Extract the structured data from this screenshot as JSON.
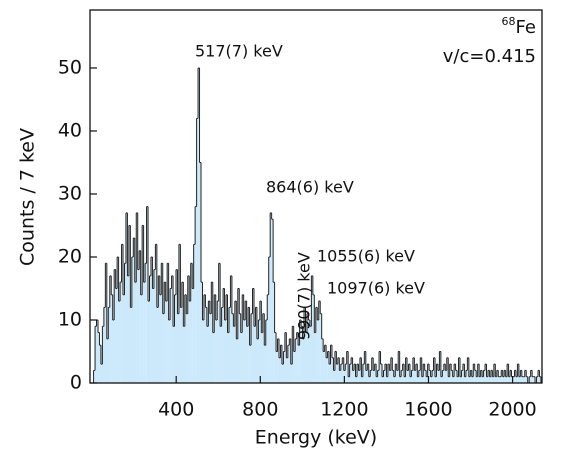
{
  "chart_data": {
    "type": "histogram",
    "x_label": "Energy (keV)",
    "y_label": "Counts / 7 keV",
    "isotope": {
      "mass": "68",
      "symbol": "Fe"
    },
    "velocity": "v/c=0.415",
    "annotations": [
      "517(7) keV",
      "864(6) keV",
      "990(7) keV",
      "1055(6) keV",
      "1097(6) keV"
    ],
    "color": "#cce9fb",
    "edge_color": "#222222",
    "xlim": [
      -10,
      2140
    ],
    "ylim": [
      0,
      59.2
    ],
    "xticks": [
      400,
      800,
      1200,
      1600,
      2000
    ],
    "yticks": [
      0,
      10,
      20,
      30,
      40,
      50
    ],
    "bins": [
      0,
      7,
      14,
      21,
      28,
      35,
      42,
      49,
      56,
      63,
      70,
      77,
      84,
      91,
      98,
      105,
      112,
      119,
      126,
      133,
      140,
      147,
      154,
      161,
      168,
      175,
      182,
      189,
      196,
      203,
      210,
      217,
      224,
      231,
      238,
      245,
      252,
      259,
      266,
      273,
      280,
      287,
      294,
      301,
      308,
      315,
      322,
      329,
      336,
      343,
      350,
      357,
      364,
      371,
      378,
      385,
      392,
      399,
      406,
      413,
      420,
      427,
      434,
      441,
      448,
      455,
      462,
      469,
      476,
      483,
      490,
      497,
      504,
      511,
      518,
      525,
      532,
      539,
      546,
      553,
      560,
      567,
      574,
      581,
      588,
      595,
      602,
      609,
      616,
      623,
      630,
      637,
      644,
      651,
      658,
      665,
      672,
      679,
      686,
      693,
      700,
      707,
      714,
      721,
      728,
      735,
      742,
      749,
      756,
      763,
      770,
      777,
      784,
      791,
      798,
      805,
      812,
      819,
      826,
      833,
      840,
      847,
      854,
      861,
      868,
      875,
      882,
      889,
      896,
      903,
      910,
      917,
      924,
      931,
      938,
      945,
      952,
      959,
      966,
      973,
      980,
      987,
      994,
      1001,
      1008,
      1015,
      1022,
      1029,
      1036,
      1043,
      1050,
      1057,
      1064,
      1071,
      1078,
      1085,
      1092,
      1099,
      1106,
      1113,
      1120,
      1127,
      1134,
      1141,
      1148,
      1155,
      1162,
      1169,
      1176,
      1183,
      1190,
      1197,
      1204,
      1211,
      1218,
      1225,
      1232,
      1239,
      1246,
      1253,
      1260,
      1267,
      1274,
      1281,
      1288,
      1295,
      1302,
      1309,
      1316,
      1323,
      1330,
      1337,
      1344,
      1351,
      1358,
      1365,
      1372,
      1379,
      1386,
      1393,
      1400,
      1407,
      1414,
      1421,
      1428,
      1435,
      1442,
      1449,
      1456,
      1463,
      1470,
      1477,
      1484,
      1491,
      1498,
      1505,
      1512,
      1519,
      1526,
      1533,
      1540,
      1547,
      1554,
      1561,
      1568,
      1575,
      1582,
      1589,
      1596,
      1603,
      1610,
      1617,
      1624,
      1631,
      1638,
      1645,
      1652,
      1659,
      1666,
      1673,
      1680,
      1687,
      1694,
      1701,
      1708,
      1715,
      1722,
      1729,
      1736,
      1743,
      1750,
      1757,
      1764,
      1771,
      1778,
      1785,
      1792,
      1799,
      1806,
      1813,
      1820,
      1827,
      1834,
      1841,
      1848,
      1855,
      1862,
      1869,
      1876,
      1883,
      1890,
      1897,
      1904,
      1911,
      1918,
      1925,
      1932,
      1939,
      1946,
      1953,
      1960,
      1967,
      1974,
      1981,
      1988,
      1995,
      2002,
      2009,
      2016,
      2023,
      2030,
      2037,
      2044,
      2051,
      2058,
      2065,
      2072,
      2079,
      2086,
      2093,
      2100,
      2107,
      2114,
      2121,
      2128,
      2135,
      2142
    ],
    "counts": [
      0,
      2,
      9,
      10,
      8,
      6,
      3,
      9,
      12,
      19,
      7,
      12,
      17,
      14,
      10,
      18,
      15,
      20,
      13,
      16,
      22,
      14,
      19,
      27,
      17,
      25,
      12,
      20,
      23,
      16,
      27,
      18,
      21,
      14,
      25,
      16,
      19,
      28,
      13,
      17,
      20,
      15,
      18,
      22,
      12,
      17,
      14,
      19,
      11,
      16,
      13,
      19,
      10,
      15,
      17,
      9,
      14,
      18,
      11,
      22,
      12,
      16,
      9,
      14,
      11,
      17,
      13,
      19,
      15,
      22,
      28,
      42,
      50,
      35,
      16,
      10,
      14,
      12,
      9,
      13,
      11,
      16,
      8,
      14,
      10,
      13,
      19,
      9,
      12,
      15,
      10,
      14,
      8,
      12,
      17,
      11,
      9,
      13,
      7,
      15,
      11,
      8,
      14,
      10,
      13,
      9,
      12,
      6,
      11,
      15,
      9,
      12,
      7,
      10,
      13,
      8,
      11,
      6,
      10,
      14,
      20,
      27,
      26,
      16,
      8,
      5,
      7,
      4,
      6,
      3,
      5,
      8,
      4,
      6,
      7,
      3,
      9,
      5,
      7,
      8,
      6,
      10,
      9,
      7,
      12,
      8,
      11,
      10,
      9,
      17,
      14,
      8,
      12,
      10,
      13,
      11,
      7,
      5,
      6,
      4,
      5,
      3,
      6,
      4,
      2,
      5,
      3,
      4,
      2,
      3,
      4,
      2,
      3,
      5,
      1,
      3,
      4,
      2,
      3,
      1,
      3,
      2,
      4,
      1,
      3,
      5,
      2,
      3,
      1,
      2,
      4,
      2,
      3,
      1,
      2,
      5,
      3,
      1,
      2,
      3,
      1,
      3,
      2,
      4,
      2,
      1,
      3,
      2,
      5,
      1,
      2,
      3,
      1,
      4,
      2,
      3,
      1,
      2,
      4,
      2,
      3,
      1,
      2,
      4,
      1,
      3,
      2,
      1,
      3,
      2,
      1,
      2,
      4,
      1,
      3,
      2,
      5,
      1,
      2,
      3,
      2,
      4,
      1,
      3,
      2,
      1,
      3,
      2,
      1,
      4,
      1,
      2,
      3,
      1,
      2,
      4,
      1,
      2,
      1,
      3,
      2,
      1,
      3,
      1,
      2,
      1,
      2,
      3,
      1,
      2,
      1,
      2,
      1,
      3,
      1,
      2,
      1,
      1,
      2,
      1,
      2,
      1,
      3,
      1,
      2,
      1,
      1,
      2,
      1,
      3,
      1,
      2,
      1,
      1,
      2,
      1,
      0,
      1,
      2,
      1,
      1,
      0,
      1,
      2,
      1,
      0
    ]
  }
}
